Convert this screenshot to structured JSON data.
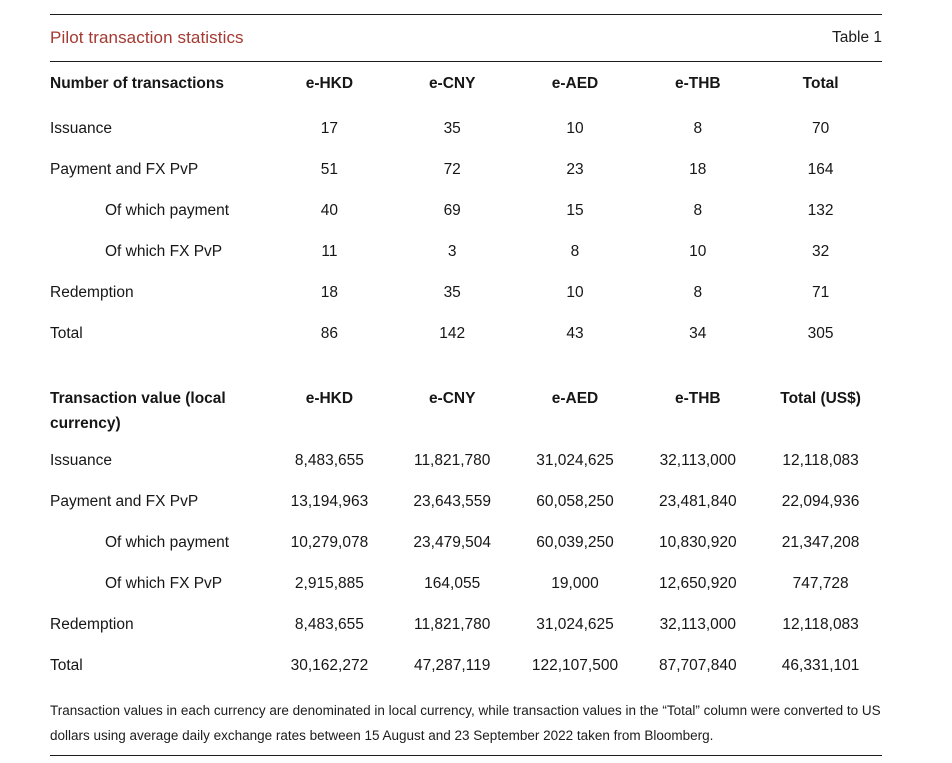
{
  "header": {
    "title": "Pilot transaction statistics",
    "table_label": "Table 1"
  },
  "currency_columns": [
    "e-HKD",
    "e-CNY",
    "e-AED",
    "e-THB"
  ],
  "section_counts": {
    "row_header": "Number of transactions",
    "total_column": "Total",
    "rows": [
      {
        "label": "Issuance",
        "values": [
          "17",
          "35",
          "10",
          "8",
          "70"
        ]
      },
      {
        "label": "Payment and FX PvP",
        "values": [
          "51",
          "72",
          "23",
          "18",
          "164"
        ]
      },
      {
        "label": "Of which payment",
        "values": [
          "40",
          "69",
          "15",
          "8",
          "132"
        ]
      },
      {
        "label": "Of which FX PvP",
        "values": [
          "11",
          "3",
          "8",
          "10",
          "32"
        ]
      },
      {
        "label": "Redemption",
        "values": [
          "18",
          "35",
          "10",
          "8",
          "71"
        ]
      },
      {
        "label": "Total",
        "values": [
          "86",
          "142",
          "43",
          "34",
          "305"
        ]
      }
    ]
  },
  "section_values": {
    "row_header": "Transaction value (local currency)",
    "total_column": "Total (US$)",
    "rows": [
      {
        "label": "Issuance",
        "values": [
          "8,483,655",
          "11,821,780",
          "31,024,625",
          "32,113,000",
          "12,118,083"
        ]
      },
      {
        "label": "Payment and FX PvP",
        "values": [
          "13,194,963",
          "23,643,559",
          "60,058,250",
          "23,481,840",
          "22,094,936"
        ]
      },
      {
        "label": "Of which payment",
        "values": [
          "10,279,078",
          "23,479,504",
          "60,039,250",
          "10,830,920",
          "21,347,208"
        ]
      },
      {
        "label": "Of which FX PvP",
        "values": [
          "2,915,885",
          "164,055",
          "19,000",
          "12,650,920",
          "747,728"
        ]
      },
      {
        "label": "Redemption",
        "values": [
          "8,483,655",
          "11,821,780",
          "31,024,625",
          "32,113,000",
          "12,118,083"
        ]
      },
      {
        "label": "Total",
        "values": [
          "30,162,272",
          "47,287,119",
          "122,107,500",
          "87,707,840",
          "46,331,101"
        ]
      }
    ]
  },
  "footnote": "Transaction values in each currency are denominated in local currency, while transaction values in the “Total” column were converted to US dollars using average daily exchange rates between 15 August and 23 September 2022 taken from Bloomberg.",
  "colors": {
    "title_red": "#A43931",
    "text": "#161616",
    "rule": "#1c1c1c"
  }
}
